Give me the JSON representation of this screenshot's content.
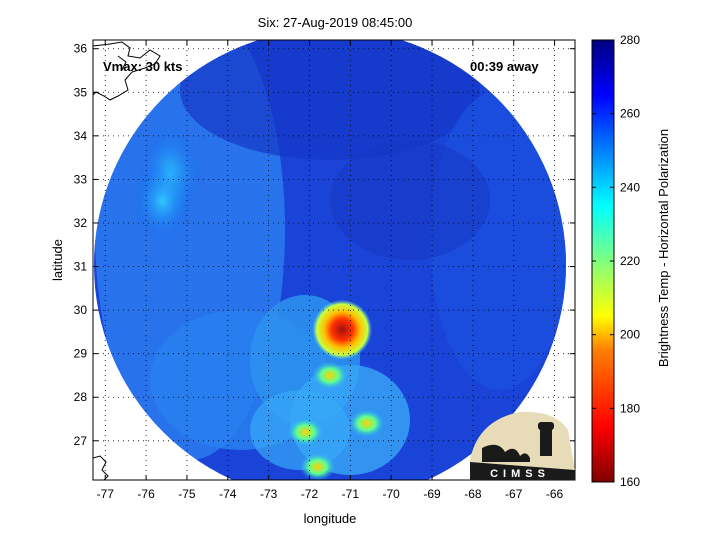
{
  "chart_data": {
    "type": "heatmap",
    "title": "Six: 27-Aug-2019 08:45:00",
    "xlabel": "longitude",
    "ylabel": "latitude",
    "xlim": [
      -77.3,
      -65.5
    ],
    "ylim": [
      26.1,
      36.2
    ],
    "x_ticks": [
      "-77",
      "-76",
      "-75",
      "-74",
      "-73",
      "-72",
      "-71",
      "-70",
      "-69",
      "-68",
      "-67",
      "-66"
    ],
    "x_tick_values": [
      -77,
      -76,
      -75,
      -74,
      -73,
      -72,
      -71,
      -70,
      -69,
      -68,
      -67,
      -66
    ],
    "y_ticks": [
      "27",
      "28",
      "29",
      "30",
      "31",
      "32",
      "33",
      "34",
      "35",
      "36"
    ],
    "y_tick_values": [
      27,
      28,
      29,
      30,
      31,
      32,
      33,
      34,
      35,
      36
    ],
    "grid": true,
    "annotations": {
      "vmax": "Vmax: 30 kts",
      "time_away": "00:39 away"
    },
    "colorbar": {
      "label": "Brightness Temp - Horizontal Polarization",
      "range": [
        160,
        280
      ],
      "ticks": [
        "280",
        "260",
        "240",
        "220",
        "200",
        "180",
        "160"
      ],
      "tick_values": [
        280,
        260,
        240,
        220,
        200,
        180,
        160
      ],
      "colormap": [
        "#800000",
        "#ff0000",
        "#ff8000",
        "#ffff00",
        "#80ff80",
        "#00ffff",
        "#0080ff",
        "#0000ff",
        "#000080"
      ]
    },
    "swath": {
      "center_lon": -71.3,
      "center_lat": 31.2,
      "background_temp": 262
    },
    "features": [
      {
        "name": "storm-core",
        "lon": -71.2,
        "lat": 29.6,
        "temp": 178
      },
      {
        "name": "storm-ring",
        "lon": -71.2,
        "lat": 29.55,
        "temp": 205
      },
      {
        "name": "band-cell-1",
        "lon": -71.5,
        "lat": 28.5,
        "temp": 238
      },
      {
        "name": "band-cell-2",
        "lon": -70.6,
        "lat": 27.4,
        "temp": 236
      },
      {
        "name": "band-cell-3",
        "lon": -72.1,
        "lat": 27.2,
        "temp": 234
      },
      {
        "name": "band-cell-4",
        "lon": -71.8,
        "lat": 26.4,
        "temp": 215
      },
      {
        "name": "cool-patch-west",
        "lon": -75.6,
        "lat": 32.5,
        "temp": 244
      }
    ]
  },
  "logo": {
    "text": "CIMSS"
  },
  "colors": {
    "background_swath": "#1a44d8",
    "frame": "#000000"
  }
}
